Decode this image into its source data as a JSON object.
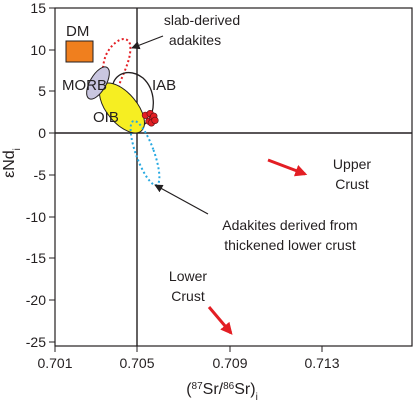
{
  "chart_data": {
    "type": "scatter",
    "title": "",
    "xlabel": {
      "open": "(",
      "sup1": "87",
      "mid1": "Sr/",
      "sup2": "86",
      "mid2": "Sr)",
      "sub": "i"
    },
    "ylabel": {
      "main": "εNd",
      "sub": "i"
    },
    "xlim": [
      0.701,
      0.716
    ],
    "ylim": [
      -25,
      15
    ],
    "xticks": [
      "0.701",
      "0.705",
      "0.709",
      "0.713"
    ],
    "yticks": [
      "15",
      "10",
      "5",
      "0",
      "-5",
      "-10",
      "-15",
      "-20",
      "-25"
    ],
    "reference_lines": {
      "x": 0.7045,
      "y": 0
    },
    "grid": false,
    "regions": [
      {
        "name": "DM",
        "shape": "rectangle",
        "x": [
          0.7018,
          0.7028
        ],
        "y": [
          8.5,
          11
        ],
        "color": "#f07f1e"
      },
      {
        "name": "MORB",
        "shape": "ellipse",
        "center": [
          0.7033,
          6.3
        ],
        "color": "#c9c6e0"
      },
      {
        "name": "OIB",
        "shape": "ellipse",
        "center": [
          0.7038,
          3.0
        ],
        "color": "#f6ee22"
      },
      {
        "name": "IAB",
        "shape": "outline",
        "color": "#231f20"
      },
      {
        "name": "slab-derived adakites",
        "shape": "dotted outline",
        "color": "#e31e24"
      },
      {
        "name": "Adakites derived from thickened lower crust",
        "shape": "dotted outline",
        "color": "#27a9e1"
      }
    ],
    "points": {
      "color": "#e31e24",
      "values": [
        [
          0.7048,
          2.3
        ],
        [
          0.70495,
          1.6
        ],
        [
          0.705,
          2.5
        ],
        [
          0.7051,
          2.0
        ],
        [
          0.70505,
          1.4
        ],
        [
          0.70515,
          2.2
        ],
        [
          0.7052,
          1.7
        ]
      ]
    },
    "annotations": [
      {
        "text": "DM",
        "points_to": "region"
      },
      {
        "text": "MORB",
        "points_to": "region"
      },
      {
        "text": "OIB",
        "points_to": "region"
      },
      {
        "text": "IAB",
        "points_to": "region"
      },
      {
        "lines": [
          "slab-derived",
          "adakites"
        ],
        "arrow": true
      },
      {
        "lines": [
          "Adakites derived from",
          "thickened lower crust"
        ],
        "arrow": true
      },
      {
        "lines": [
          "Upper",
          "Crust"
        ],
        "arrow_color": "#e31e24"
      },
      {
        "lines": [
          "Lower",
          "Crust"
        ],
        "arrow_color": "#e31e24"
      }
    ]
  }
}
